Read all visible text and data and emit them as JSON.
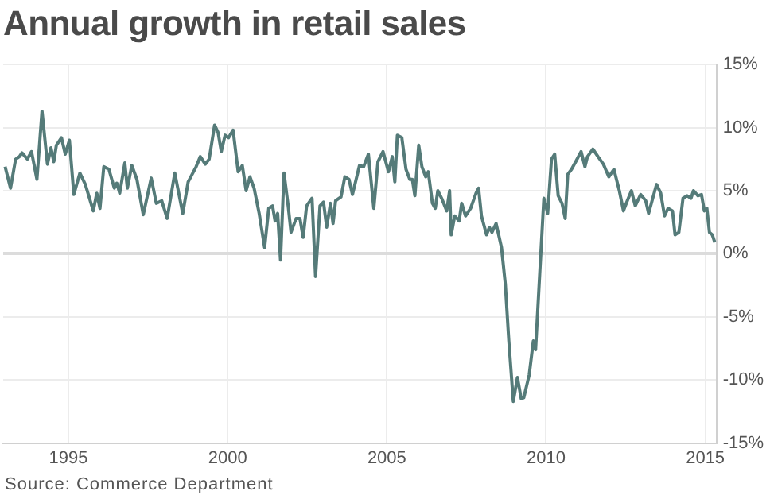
{
  "chart_data": {
    "type": "line",
    "title": "Annual growth in retail sales",
    "annotations": [
      "Source: Commerce Department"
    ],
    "x": [
      1993.01,
      1993.18,
      1993.34,
      1993.46,
      1993.54,
      1993.71,
      1993.84,
      1994.01,
      1994.17,
      1994.34,
      1994.45,
      1994.54,
      1994.62,
      1994.78,
      1994.9,
      1995.03,
      1995.17,
      1995.36,
      1995.53,
      1995.78,
      1995.89,
      1995.99,
      1996.11,
      1996.27,
      1996.44,
      1996.52,
      1996.61,
      1996.77,
      1996.85,
      1996.99,
      1997.15,
      1997.35,
      1997.6,
      1997.76,
      1997.93,
      1998.1,
      1998.34,
      1998.59,
      1998.76,
      1999.01,
      1999.14,
      1999.3,
      1999.42,
      1999.59,
      1999.7,
      1999.8,
      1999.92,
      2000.03,
      2000.17,
      2000.33,
      2000.46,
      2000.58,
      2000.7,
      2000.83,
      2000.99,
      2001.16,
      2001.29,
      2001.41,
      2001.49,
      2001.57,
      2001.66,
      2001.77,
      2001.9,
      2001.99,
      2002.15,
      2002.27,
      2002.37,
      2002.48,
      2002.65,
      2002.76,
      2002.9,
      2003.01,
      2003.11,
      2003.23,
      2003.31,
      2003.39,
      2003.56,
      2003.68,
      2003.81,
      2003.92,
      2004.14,
      2004.27,
      2004.42,
      2004.59,
      2004.72,
      2004.88,
      2005.05,
      2005.17,
      2005.25,
      2005.33,
      2005.47,
      2005.6,
      2005.72,
      2005.8,
      2005.88,
      2006.0,
      2006.1,
      2006.22,
      2006.3,
      2006.43,
      2006.52,
      2006.6,
      2006.72,
      2006.88,
      2006.97,
      2007.02,
      2007.13,
      2007.27,
      2007.35,
      2007.47,
      2007.63,
      2007.8,
      2007.88,
      2007.97,
      2008.13,
      2008.22,
      2008.3,
      2008.43,
      2008.6,
      2008.72,
      2008.83,
      2008.97,
      2009.1,
      2009.22,
      2009.3,
      2009.47,
      2009.6,
      2009.67,
      2009.8,
      2009.93,
      2010.05,
      2010.17,
      2010.27,
      2010.38,
      2010.5,
      2010.6,
      2010.68,
      2010.8,
      2010.93,
      2011.1,
      2011.22,
      2011.3,
      2011.47,
      2011.63,
      2011.8,
      2011.97,
      2012.13,
      2012.3,
      2012.43,
      2012.55,
      2012.68,
      2012.8,
      2012.97,
      2013.13,
      2013.22,
      2013.35,
      2013.47,
      2013.6,
      2013.72,
      2013.83,
      2013.97,
      2014.05,
      2014.17,
      2014.3,
      2014.43,
      2014.55,
      2014.63,
      2014.77,
      2014.88,
      2014.97,
      2015.05,
      2015.13,
      2015.22,
      2015.3
    ],
    "series": [
      {
        "color": "#557b79",
        "values": [
          6.9,
          5.2,
          7.5,
          7.7,
          8.0,
          7.5,
          8.1,
          5.9,
          11.3,
          7.1,
          8.4,
          7.3,
          8.6,
          9.2,
          7.9,
          9.0,
          4.7,
          6.4,
          5.5,
          3.4,
          4.8,
          3.6,
          6.9,
          6.7,
          5.2,
          5.6,
          4.8,
          7.2,
          5.2,
          7.0,
          5.9,
          3.1,
          6.0,
          4.0,
          4.2,
          2.8,
          6.4,
          3.2,
          5.7,
          6.9,
          7.7,
          7.1,
          7.5,
          10.2,
          9.6,
          8.1,
          9.4,
          9.2,
          9.8,
          6.5,
          7.0,
          5.0,
          6.1,
          5.2,
          3.2,
          0.5,
          3.6,
          3.8,
          2.6,
          3.2,
          -0.5,
          6.4,
          3.8,
          1.7,
          2.8,
          2.8,
          1.3,
          3.8,
          4.4,
          -1.8,
          3.8,
          4.1,
          2.1,
          4.0,
          2.4,
          4.2,
          4.5,
          6.1,
          5.9,
          4.7,
          7.0,
          6.9,
          7.9,
          3.6,
          7.3,
          8.1,
          6.5,
          7.7,
          5.7,
          9.4,
          9.2,
          6.7,
          5.9,
          5.9,
          4.6,
          8.6,
          6.9,
          6.1,
          6.5,
          4.0,
          3.6,
          5.0,
          4.4,
          3.4,
          5.0,
          1.5,
          3.0,
          2.6,
          4.0,
          3.0,
          3.6,
          4.8,
          5.2,
          3.0,
          1.5,
          2.1,
          1.7,
          2.4,
          0.5,
          -2.4,
          -6.9,
          -11.7,
          -9.8,
          -11.5,
          -11.4,
          -9.6,
          -6.9,
          -7.6,
          -1.6,
          4.4,
          3.2,
          7.5,
          7.9,
          4.6,
          4.0,
          2.8,
          6.3,
          6.7,
          7.3,
          8.1,
          6.9,
          7.7,
          8.3,
          7.7,
          7.1,
          6.1,
          6.7,
          5.0,
          3.4,
          4.2,
          5.0,
          3.8,
          4.7,
          4.2,
          3.2,
          4.4,
          5.5,
          4.8,
          3.0,
          3.6,
          3.4,
          1.5,
          1.7,
          4.4,
          4.6,
          4.4,
          5.0,
          4.6,
          4.7,
          3.4,
          3.6,
          1.7,
          1.5,
          0.9
        ]
      }
    ],
    "xlim": [
      1992.95,
      2015.35
    ],
    "xticks": [
      1995,
      2000,
      2005,
      2010,
      2015
    ],
    "ylim": [
      -15,
      15
    ],
    "yticks": [
      {
        "value": -15,
        "label": "-15%"
      },
      {
        "value": -10,
        "label": "-10%"
      },
      {
        "value": -5,
        "label": "-5%"
      },
      {
        "value": 0,
        "label": "0%"
      },
      {
        "value": 5,
        "label": "5%"
      },
      {
        "value": 10,
        "label": "10%"
      },
      {
        "value": 15,
        "label": "15%"
      }
    ],
    "grid": true,
    "marker": "none",
    "line_style": "solid"
  }
}
